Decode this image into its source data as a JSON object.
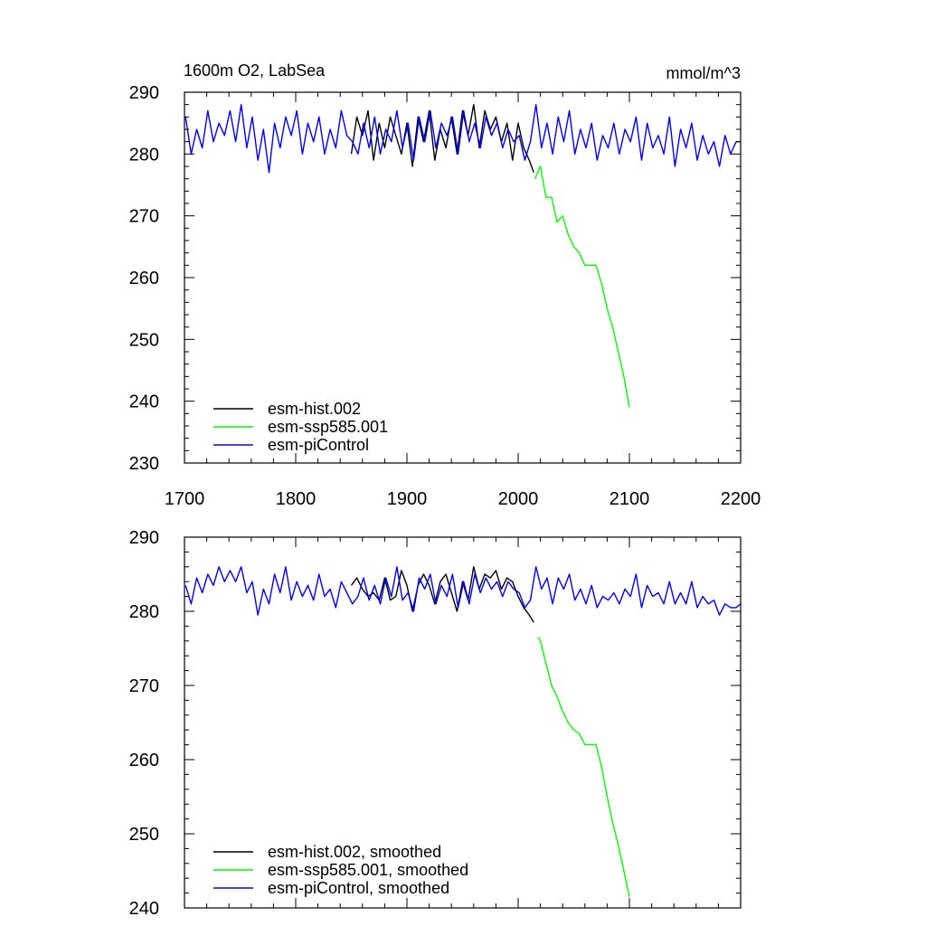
{
  "chart_data": [
    {
      "type": "line",
      "title": "1600m O2, LabSea",
      "units": "mmol/m^3",
      "xlim": [
        1700,
        2200
      ],
      "ylim": [
        230,
        290
      ],
      "xticks": [
        1700,
        1800,
        1900,
        2000,
        2100,
        2200
      ],
      "xtick_labels": [
        "1700",
        "1800",
        "1900",
        "2000",
        "2100",
        "2200"
      ],
      "yticks": [
        230,
        240,
        250,
        260,
        270,
        280,
        290
      ],
      "ytick_labels": [
        "230",
        "240",
        "250",
        "260",
        "270",
        "280",
        "290"
      ],
      "grid": false,
      "legend_position": "bottom-left",
      "series": [
        {
          "name": "esm-hist.002",
          "color": "#000000",
          "x": [
            1850,
            1855,
            1860,
            1865,
            1870,
            1875,
            1880,
            1885,
            1890,
            1895,
            1900,
            1905,
            1910,
            1915,
            1920,
            1925,
            1930,
            1935,
            1940,
            1945,
            1950,
            1955,
            1960,
            1965,
            1970,
            1975,
            1980,
            1985,
            1990,
            1995,
            2000,
            2005,
            2010,
            2014
          ],
          "values": [
            280,
            286,
            283,
            287,
            279,
            285,
            281,
            286,
            283,
            280,
            285,
            278,
            286,
            282,
            287,
            279,
            284,
            281,
            286,
            280,
            287,
            283,
            288,
            281,
            287,
            284,
            286,
            282,
            285,
            279,
            285,
            281,
            279,
            277
          ]
        },
        {
          "name": "esm-ssp585.001",
          "color": "#00ff00",
          "x": [
            2015,
            2020,
            2025,
            2030,
            2035,
            2040,
            2045,
            2050,
            2055,
            2060,
            2065,
            2070,
            2075,
            2080,
            2085,
            2090,
            2095,
            2100
          ],
          "values": [
            276,
            278,
            273,
            273,
            269,
            270,
            267,
            265,
            264,
            262,
            262,
            262,
            259,
            255,
            252,
            248,
            244,
            239
          ]
        },
        {
          "name": "esm-piControl",
          "color": "#0000ff",
          "x": [
            1701,
            1706,
            1711,
            1716,
            1721,
            1726,
            1731,
            1736,
            1741,
            1746,
            1751,
            1756,
            1761,
            1766,
            1771,
            1776,
            1781,
            1786,
            1791,
            1796,
            1801,
            1806,
            1811,
            1816,
            1821,
            1826,
            1831,
            1836,
            1841,
            1846,
            1851,
            1856,
            1861,
            1866,
            1871,
            1876,
            1881,
            1886,
            1891,
            1896,
            1901,
            1906,
            1911,
            1916,
            1921,
            1926,
            1931,
            1936,
            1941,
            1946,
            1951,
            1956,
            1961,
            1966,
            1971,
            1976,
            1981,
            1986,
            1991,
            1996,
            2001,
            2006,
            2011,
            2016,
            2021,
            2026,
            2031,
            2036,
            2041,
            2046,
            2051,
            2056,
            2061,
            2066,
            2071,
            2076,
            2081,
            2086,
            2091,
            2096,
            2101,
            2106,
            2111,
            2116,
            2121,
            2126,
            2131,
            2136,
            2141,
            2146,
            2151,
            2156,
            2161,
            2166,
            2171,
            2176,
            2181,
            2186,
            2191,
            2196,
            2200
          ],
          "values": [
            286,
            280,
            284,
            281,
            287,
            282,
            285,
            283,
            287,
            282,
            288,
            281,
            286,
            279,
            284,
            277,
            285,
            281,
            286,
            283,
            287,
            280,
            285,
            282,
            286,
            280,
            284,
            281,
            287,
            283,
            282,
            280,
            285,
            281,
            286,
            280,
            284,
            282,
            287,
            281,
            285,
            279,
            286,
            282,
            287,
            281,
            285,
            283,
            286,
            280,
            287,
            282,
            285,
            281,
            286,
            283,
            285,
            281,
            284,
            282,
            283,
            279,
            282,
            288,
            281,
            285,
            280,
            286,
            282,
            287,
            280,
            284,
            281,
            285,
            279,
            283,
            281,
            285,
            280,
            284,
            282,
            286,
            279,
            285,
            281,
            283,
            280,
            286,
            278,
            284,
            281,
            285,
            279,
            283,
            280,
            282,
            278,
            283,
            280,
            282,
            282
          ]
        }
      ]
    },
    {
      "type": "line",
      "title": "",
      "units": "",
      "xlim": [
        1700,
        2200
      ],
      "ylim": [
        240,
        290
      ],
      "xticks": [
        1700,
        1800,
        1900,
        2000,
        2100,
        2200
      ],
      "yticks": [
        240,
        250,
        260,
        270,
        280,
        290
      ],
      "ytick_labels": [
        "240",
        "250",
        "260",
        "270",
        "280",
        "290"
      ],
      "grid": false,
      "legend_position": "bottom-left",
      "series": [
        {
          "name": "esm-hist.002, smoothed",
          "color": "#000000",
          "x": [
            1850,
            1855,
            1860,
            1865,
            1870,
            1875,
            1880,
            1885,
            1890,
            1895,
            1900,
            1905,
            1910,
            1915,
            1920,
            1925,
            1930,
            1935,
            1940,
            1945,
            1950,
            1955,
            1960,
            1965,
            1970,
            1975,
            1980,
            1985,
            1990,
            1995,
            2000,
            2005,
            2010,
            2014
          ],
          "values": [
            283.5,
            284.5,
            283,
            282,
            282.5,
            281.5,
            284.5,
            281.5,
            282,
            285.5,
            283.5,
            280,
            283.5,
            285,
            283.5,
            281,
            284,
            285,
            282.5,
            280,
            284,
            281.5,
            286,
            283,
            285,
            284.5,
            285.5,
            283,
            284.5,
            284,
            282,
            280.5,
            279.5,
            278.5
          ]
        },
        {
          "name": "esm-ssp585.001, smoothed",
          "color": "#00ff00",
          "x": [
            2018,
            2020,
            2025,
            2030,
            2035,
            2040,
            2045,
            2050,
            2055,
            2060,
            2065,
            2070,
            2075,
            2080,
            2085,
            2090,
            2095,
            2100
          ],
          "values": [
            276.5,
            276,
            273,
            270,
            268.5,
            266.5,
            265,
            264,
            263.5,
            262,
            262,
            262,
            259,
            255,
            251.5,
            248.5,
            245,
            241.5
          ]
        },
        {
          "name": "esm-piControl, smoothed",
          "color": "#0000ff",
          "x": [
            1701,
            1706,
            1711,
            1716,
            1721,
            1726,
            1731,
            1736,
            1741,
            1746,
            1751,
            1756,
            1761,
            1766,
            1771,
            1776,
            1781,
            1786,
            1791,
            1796,
            1801,
            1806,
            1811,
            1816,
            1821,
            1826,
            1831,
            1836,
            1841,
            1846,
            1851,
            1856,
            1861,
            1866,
            1871,
            1876,
            1881,
            1886,
            1891,
            1896,
            1901,
            1906,
            1911,
            1916,
            1921,
            1926,
            1931,
            1936,
            1941,
            1946,
            1951,
            1956,
            1961,
            1966,
            1971,
            1976,
            1981,
            1986,
            1991,
            1996,
            2001,
            2006,
            2011,
            2016,
            2021,
            2026,
            2031,
            2036,
            2041,
            2046,
            2051,
            2056,
            2061,
            2066,
            2071,
            2076,
            2081,
            2086,
            2091,
            2096,
            2101,
            2106,
            2111,
            2116,
            2121,
            2126,
            2131,
            2136,
            2141,
            2146,
            2151,
            2156,
            2161,
            2166,
            2171,
            2176,
            2181,
            2186,
            2191,
            2196,
            2200
          ],
          "values": [
            283.5,
            281,
            284.5,
            282.5,
            285,
            283.5,
            286,
            284,
            285.5,
            284,
            286,
            282.5,
            284,
            279.5,
            283,
            281,
            285,
            282.5,
            286,
            281.5,
            284,
            282,
            283.5,
            281.5,
            285,
            282,
            283,
            280.5,
            284,
            282.5,
            281,
            282,
            284.5,
            281.5,
            283.5,
            281,
            284.5,
            282,
            286,
            281.5,
            282.5,
            280,
            284.5,
            283,
            285,
            281,
            283.5,
            282,
            285,
            280.5,
            284,
            281,
            285,
            282.5,
            284.5,
            283,
            284,
            282,
            284,
            283,
            282.5,
            280.5,
            281.5,
            286,
            283,
            284.5,
            281,
            284.5,
            283,
            285,
            281.5,
            283,
            281,
            283.5,
            280.5,
            282,
            281.5,
            282.5,
            281,
            283,
            282,
            285,
            280.5,
            283.5,
            282,
            282.5,
            281,
            284,
            281,
            282.5,
            281,
            284,
            280.5,
            282,
            281,
            281.5,
            279.5,
            281,
            280.5,
            280.5,
            281
          ]
        }
      ]
    }
  ]
}
